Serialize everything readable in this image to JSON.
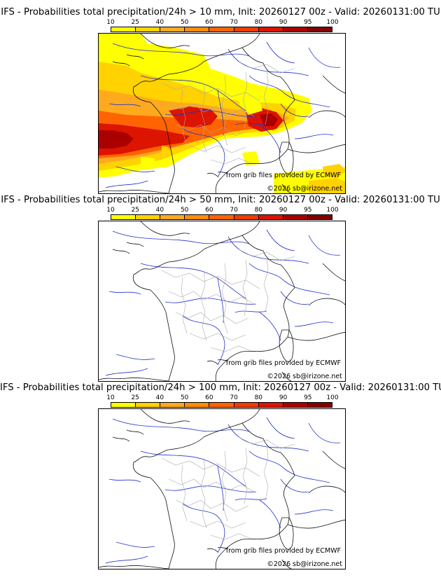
{
  "legend_levels": [
    "10",
    "25",
    "40",
    "50",
    "60",
    "70",
    "80",
    "90",
    "95",
    "100"
  ],
  "legend_colors": [
    "#ffff00",
    "#ffd200",
    "#ffaa1e",
    "#ff8c0a",
    "#ff6400",
    "#f03c00",
    "#dc1400",
    "#aa0000",
    "#820000",
    "#500000"
  ],
  "credits": {
    "source": "from grib files provided by ECMWF",
    "copyright": "©2026 sb@irizone.net"
  },
  "panels": [
    {
      "title": "IFS - Probabilities total precipitation/24h > 10 mm, Init: 20260127 00z - Valid: 20260131:00 TU",
      "threshold_mm": 10
    },
    {
      "title": "IFS - Probabilities total precipitation/24h > 50 mm, Init: 20260127 00z - Valid: 20260131:00 TU",
      "threshold_mm": 50
    },
    {
      "title": "IFS - Probabilities total precipitation/24h > 100 mm, Init: 20260127 00z - Valid: 20260131:00 TU",
      "threshold_mm": 100
    }
  ]
}
